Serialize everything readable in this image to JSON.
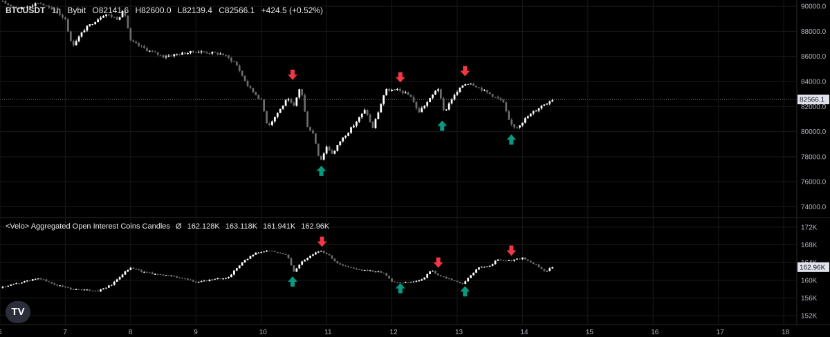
{
  "header": {
    "symbol": "BTCUSDT",
    "interval": "1h",
    "exchange": "Bybit",
    "open": "O82141.6",
    "high": "H82600.0",
    "low": "L82139.4",
    "close": "C82566.1",
    "change": "+424.5 (+0.52%)"
  },
  "oi_header": {
    "name": "<Velo> Aggregated Open Interest Coins Candles",
    "flag": "Ø",
    "open": "162.128K",
    "high": "163.118K",
    "low": "161.941K",
    "close": "162.96K"
  },
  "logo_text": "TV",
  "colors": {
    "background": "#000000",
    "candle_up": "#ffffff",
    "candle_down": "#6b6b6b",
    "arrow_up": "#089981",
    "arrow_down": "#f23645",
    "grid": "#1a1a1a",
    "price_line": "#8a8a8a"
  },
  "chart_data": [
    {
      "type": "candlestick",
      "series_name": "BTCUSDT 1h Bybit",
      "x_ticks": [
        "6",
        "7",
        "8",
        "9",
        "10",
        "11",
        "12",
        "13",
        "14",
        "15",
        "16",
        "17",
        "18"
      ],
      "xlim": [
        6,
        18.2
      ],
      "ylim": [
        73200,
        90500
      ],
      "y_ticks": [
        "74000.0",
        "76000.0",
        "78000.0",
        "80000.0",
        "82000.0",
        "84000.0",
        "86000.0",
        "88000.0",
        "90000.0"
      ],
      "last_value_label": "82566.1",
      "last_value": 82566.1,
      "anchors": [
        [
          6.0,
          90400
        ],
        [
          6.3,
          89800
        ],
        [
          6.6,
          90300
        ],
        [
          6.9,
          89400
        ],
        [
          7.0,
          89000
        ],
        [
          7.1,
          86800
        ],
        [
          7.3,
          88200
        ],
        [
          7.6,
          89400
        ],
        [
          7.8,
          89000
        ],
        [
          7.9,
          89700
        ],
        [
          8.0,
          87200
        ],
        [
          8.3,
          86400
        ],
        [
          8.5,
          86000
        ],
        [
          9.0,
          86400
        ],
        [
          9.4,
          86200
        ],
        [
          9.6,
          85500
        ],
        [
          9.8,
          83600
        ],
        [
          10.0,
          82500
        ],
        [
          10.1,
          80400
        ],
        [
          10.4,
          82600
        ],
        [
          10.5,
          82000
        ],
        [
          10.6,
          83700
        ],
        [
          10.7,
          80500
        ],
        [
          10.8,
          79800
        ],
        [
          10.9,
          77600
        ],
        [
          11.0,
          78800
        ],
        [
          11.1,
          78200
        ],
        [
          11.2,
          79200
        ],
        [
          11.4,
          80400
        ],
        [
          11.6,
          81800
        ],
        [
          11.7,
          80200
        ],
        [
          11.8,
          81700
        ],
        [
          11.9,
          83300
        ],
        [
          12.1,
          83300
        ],
        [
          12.3,
          82800
        ],
        [
          12.4,
          81500
        ],
        [
          12.6,
          82700
        ],
        [
          12.7,
          83600
        ],
        [
          12.8,
          81500
        ],
        [
          12.9,
          82500
        ],
        [
          13.1,
          83800
        ],
        [
          13.2,
          83900
        ],
        [
          13.4,
          83300
        ],
        [
          13.5,
          83000
        ],
        [
          13.7,
          82400
        ],
        [
          13.8,
          80700
        ],
        [
          13.9,
          80300
        ],
        [
          14.1,
          81300
        ],
        [
          14.3,
          82100
        ],
        [
          14.45,
          82566
        ]
      ],
      "signals": [
        {
          "dir": "down",
          "x": 10.48,
          "y": 84500
        },
        {
          "dir": "up",
          "x": 10.92,
          "y": 76900
        },
        {
          "dir": "down",
          "x": 12.13,
          "y": 84300
        },
        {
          "dir": "up",
          "x": 12.77,
          "y": 80500
        },
        {
          "dir": "down",
          "x": 13.12,
          "y": 84800
        },
        {
          "dir": "up",
          "x": 13.83,
          "y": 79400
        }
      ]
    },
    {
      "type": "candlestick",
      "series_name": "<Velo> Aggregated Open Interest Coins Candles",
      "x_ticks": [
        "6",
        "7",
        "8",
        "9",
        "10",
        "11",
        "12",
        "13",
        "14",
        "15",
        "16",
        "17",
        "18"
      ],
      "xlim": [
        6,
        18.2
      ],
      "ylim": [
        150000,
        174000
      ],
      "y_ticks": [
        "152K",
        "156K",
        "160K",
        "164K",
        "168K",
        "172K"
      ],
      "last_value_label": "162.96K",
      "last_value": 162960,
      "anchors": [
        [
          6.0,
          158300
        ],
        [
          6.3,
          159400
        ],
        [
          6.6,
          160500
        ],
        [
          6.8,
          159200
        ],
        [
          7.0,
          158400
        ],
        [
          7.1,
          158000
        ],
        [
          7.3,
          157800
        ],
        [
          7.5,
          157600
        ],
        [
          7.7,
          158900
        ],
        [
          7.8,
          160300
        ],
        [
          7.9,
          161800
        ],
        [
          8.0,
          162900
        ],
        [
          8.2,
          161800
        ],
        [
          8.5,
          161200
        ],
        [
          8.8,
          160500
        ],
        [
          9.0,
          159500
        ],
        [
          9.2,
          160000
        ],
        [
          9.5,
          160700
        ],
        [
          9.7,
          164000
        ],
        [
          9.9,
          166000
        ],
        [
          10.1,
          166700
        ],
        [
          10.3,
          166100
        ],
        [
          10.4,
          165600
        ],
        [
          10.5,
          161800
        ],
        [
          10.6,
          164000
        ],
        [
          10.8,
          166000
        ],
        [
          10.9,
          166700
        ],
        [
          11.0,
          166000
        ],
        [
          11.2,
          163500
        ],
        [
          11.5,
          162300
        ],
        [
          11.8,
          162000
        ],
        [
          11.9,
          161400
        ],
        [
          12.0,
          159700
        ],
        [
          12.2,
          159400
        ],
        [
          12.4,
          159900
        ],
        [
          12.5,
          160600
        ],
        [
          12.6,
          162300
        ],
        [
          12.7,
          161200
        ],
        [
          12.8,
          160600
        ],
        [
          13.0,
          159700
        ],
        [
          13.1,
          159200
        ],
        [
          13.3,
          162700
        ],
        [
          13.5,
          163200
        ],
        [
          13.6,
          164600
        ],
        [
          13.8,
          164400
        ],
        [
          14.0,
          165000
        ],
        [
          14.2,
          163500
        ],
        [
          14.35,
          162000
        ],
        [
          14.45,
          162960
        ]
      ],
      "signals": [
        {
          "dir": "down",
          "x": 10.93,
          "y": 168600
        },
        {
          "dir": "up",
          "x": 10.48,
          "y": 159800
        },
        {
          "dir": "up",
          "x": 12.13,
          "y": 158300
        },
        {
          "dir": "down",
          "x": 12.71,
          "y": 163900
        },
        {
          "dir": "up",
          "x": 13.12,
          "y": 157600
        },
        {
          "dir": "down",
          "x": 13.83,
          "y": 166600
        }
      ]
    }
  ]
}
